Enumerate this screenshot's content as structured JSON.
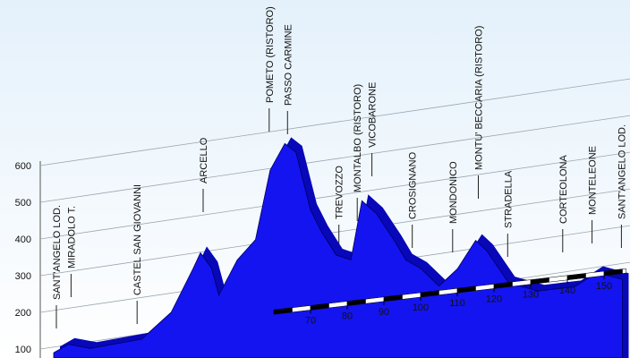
{
  "chart_data": {
    "type": "area",
    "color": "#1414f0",
    "x": [
      0,
      4,
      10,
      24,
      32,
      38,
      40,
      43,
      45,
      50,
      55,
      59,
      63,
      66,
      70,
      73,
      77,
      81,
      84,
      88,
      93,
      96,
      100,
      105,
      110,
      115,
      118,
      124,
      132,
      142,
      148,
      155
    ],
    "values": [
      70,
      90,
      70,
      80,
      150,
      275,
      320,
      270,
      185,
      285,
      340,
      545,
      620,
      590,
      410,
      340,
      265,
      245,
      420,
      375,
      285,
      225,
      195,
      135,
      180,
      260,
      225,
      120,
      85,
      85,
      120,
      90
    ],
    "xlim": [
      0,
      156
    ],
    "xticks": [
      70,
      80,
      90,
      100,
      110,
      120,
      130,
      140,
      150
    ],
    "ylim": [
      0,
      700
    ],
    "yticks": [
      100,
      200,
      300,
      400,
      500,
      600
    ],
    "grid": true,
    "places": [
      {
        "name": "SANT'ANGELO LOD.",
        "km": 0
      },
      {
        "name": "MIRADOLO T.",
        "km": 4
      },
      {
        "name": "CASTEL SAN GIOVANNI",
        "km": 22
      },
      {
        "name": "ARCELLO",
        "km": 40
      },
      {
        "name": "POMETO (RISTORO)",
        "km": 58
      },
      {
        "name": "PASSO CARMINE",
        "km": 63
      },
      {
        "name": "TREVOZZO",
        "km": 77
      },
      {
        "name": "MONTALBO (RISTORO)",
        "km": 82
      },
      {
        "name": "VICOBARONE",
        "km": 86
      },
      {
        "name": "CROSIGNANO",
        "km": 97
      },
      {
        "name": "MONDONICO",
        "km": 108
      },
      {
        "name": "MONTU' BECCARIA (RISTORO)",
        "km": 115
      },
      {
        "name": "STRADELLA",
        "km": 123
      },
      {
        "name": "CORTEOLONA",
        "km": 138
      },
      {
        "name": "MONTELEONE",
        "km": 146
      },
      {
        "name": "SANT'ANGELO LOD.",
        "km": 154
      }
    ]
  }
}
